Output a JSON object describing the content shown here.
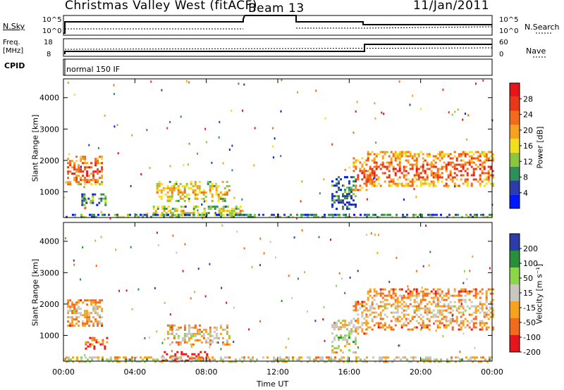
{
  "header": {
    "station": "Christmas Valley West (fitACF)",
    "beam": "Beam 13",
    "date": "11/Jan/2011"
  },
  "params": {
    "nsky_label": "N.Sky",
    "nsky_ticks": [
      "10^5",
      "10^0"
    ],
    "nsearch_label": "N.Search",
    "nsearch_ticks": [
      "10^5",
      "10^0"
    ],
    "freq_label_1": "Freq.",
    "freq_label_2": "[MHz]",
    "freq_ticks": [
      "18",
      "8"
    ],
    "nave_label": "Nave",
    "nave_ticks": [
      "60",
      "0"
    ],
    "cpid_label": "CPID",
    "cpid_value": "normal 150 IF"
  },
  "axes": {
    "ylabel": "Slant Range [km]",
    "yticks": [
      1000,
      2000,
      3000,
      4000
    ],
    "xlabel": "Time UT",
    "xticks": [
      "00:00",
      "04:00",
      "08:00",
      "12:00",
      "16:00",
      "20:00",
      "00:00"
    ]
  },
  "colors": {
    "power": [
      "#0018ff",
      "#2c3ca8",
      "#2f8f5a",
      "#8cc63f",
      "#f2e01e",
      "#f7a21c",
      "#f26a1b",
      "#e83818",
      "#e8141c"
    ],
    "velocity": [
      "#e8141c",
      "#f26a1b",
      "#f7a21c",
      "#c8c8c0",
      "#8cd64a",
      "#2a8f3a",
      "#2c3ca8"
    ]
  },
  "chart_data": [
    {
      "type": "heatmap",
      "name": "power",
      "colorbar_label": "Power [dB]",
      "colorbar_ticks": [
        "4",
        "8",
        "12",
        "16",
        "20",
        "24",
        "28"
      ],
      "xlim_hours": [
        0,
        24
      ],
      "ylim_km": [
        180,
        4600
      ],
      "regions": [
        {
          "t0": 0.2,
          "t1": 2.2,
          "r0": 1250,
          "r1": 2150,
          "level": 0.8
        },
        {
          "t0": 1.0,
          "t1": 2.4,
          "r0": 550,
          "r1": 950,
          "level": 0.35
        },
        {
          "t0": 5.2,
          "t1": 9.3,
          "r0": 700,
          "r1": 1350,
          "level": 0.6
        },
        {
          "t0": 5.0,
          "t1": 10.0,
          "r0": 230,
          "r1": 560,
          "level": 0.55
        },
        {
          "t0": 0.0,
          "t1": 24.0,
          "r0": 180,
          "r1": 300,
          "level": 0.4
        },
        {
          "t0": 15.0,
          "t1": 16.4,
          "r0": 450,
          "r1": 1500,
          "level": 0.3
        },
        {
          "t0": 16.2,
          "t1": 17.0,
          "r0": 1050,
          "r1": 2100,
          "level": 0.8
        },
        {
          "t0": 17.0,
          "t1": 24.0,
          "r0": 1200,
          "r1": 2300,
          "level": 0.8
        }
      ]
    },
    {
      "type": "heatmap",
      "name": "velocity",
      "colorbar_label": "Velocity [m s⁻¹]",
      "colorbar_ticks": [
        "-200",
        "-100",
        "-50",
        "-15",
        "15",
        "50",
        "100",
        "200"
      ],
      "xlim_hours": [
        0,
        24
      ],
      "ylim_km": [
        180,
        4600
      ],
      "regions": [
        {
          "t0": 0.2,
          "t1": 2.2,
          "r0": 1300,
          "r1": 2150,
          "level": 0.45
        },
        {
          "t0": 1.2,
          "t1": 2.4,
          "r0": 600,
          "r1": 950,
          "level": 0.25
        },
        {
          "t0": 5.8,
          "t1": 9.3,
          "r0": 700,
          "r1": 1350,
          "level": 0.5
        },
        {
          "t0": 5.5,
          "t1": 8.0,
          "r0": 230,
          "r1": 500,
          "level": 0.08
        },
        {
          "t0": 0.0,
          "t1": 24.0,
          "r0": 180,
          "r1": 330,
          "level": 0.6
        },
        {
          "t0": 15.0,
          "t1": 16.4,
          "r0": 450,
          "r1": 1500,
          "level": 0.62
        },
        {
          "t0": 16.2,
          "t1": 17.0,
          "r0": 1050,
          "r1": 2100,
          "level": 0.45
        },
        {
          "t0": 17.0,
          "t1": 24.0,
          "r0": 1200,
          "r1": 2500,
          "level": 0.45
        }
      ]
    }
  ]
}
